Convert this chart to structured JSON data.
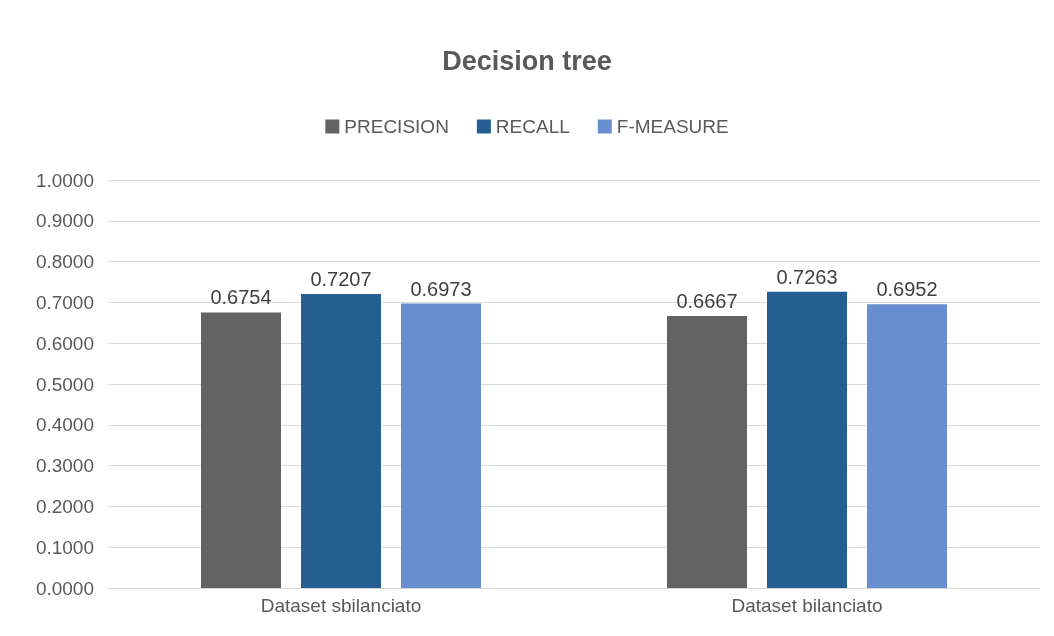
{
  "chart_data": {
    "type": "bar",
    "title": "Decision tree",
    "categories": [
      "Dataset sbilanciato",
      "Dataset bilanciato"
    ],
    "series": [
      {
        "name": "PRECISION",
        "color": "#636363",
        "values": [
          0.6754,
          0.6667
        ]
      },
      {
        "name": "RECALL",
        "color": "#255e91",
        "values": [
          0.7207,
          0.7263
        ]
      },
      {
        "name": "F-MEASURE",
        "color": "#698ed0",
        "values": [
          0.6973,
          0.6952
        ]
      }
    ],
    "ylim": [
      0,
      1
    ],
    "yticks": [
      {
        "value": 0,
        "label": "0.0000"
      },
      {
        "value": 0.1,
        "label": "0.1000"
      },
      {
        "value": 0.2,
        "label": "0.2000"
      },
      {
        "value": 0.3,
        "label": "0.3000"
      },
      {
        "value": 0.4,
        "label": "0.4000"
      },
      {
        "value": 0.5,
        "label": "0.5000"
      },
      {
        "value": 0.6,
        "label": "0.6000"
      },
      {
        "value": 0.7,
        "label": "0.7000"
      },
      {
        "value": 0.8,
        "label": "0.8000"
      },
      {
        "value": 0.9,
        "label": "0.9000"
      },
      {
        "value": 1,
        "label": "1.0000"
      }
    ],
    "grid": true,
    "legend": "top",
    "data_labels": true
  }
}
